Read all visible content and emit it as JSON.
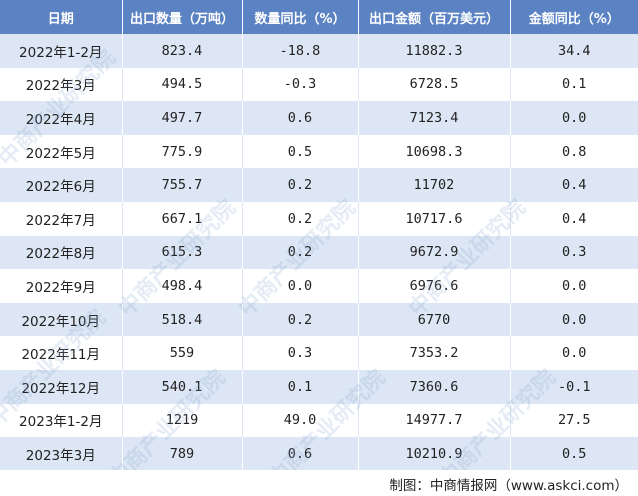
{
  "table": {
    "headers": [
      "日期",
      "出口数量（万吨）",
      "数量同比（%）",
      "出口金额（百万美元）",
      "金额同比（%）"
    ],
    "rows": [
      [
        "2022年1-2月",
        "823.4",
        "-18.8",
        "11882.3",
        "34.4"
      ],
      [
        "2022年3月",
        "494.5",
        "-0.3",
        "6728.5",
        "0.1"
      ],
      [
        "2022年4月",
        "497.7",
        "0.6",
        "7123.4",
        "0.0"
      ],
      [
        "2022年5月",
        "775.9",
        "0.5",
        "10698.3",
        "0.8"
      ],
      [
        "2022年6月",
        "755.7",
        "0.2",
        "11702",
        "0.4"
      ],
      [
        "2022年7月",
        "667.1",
        "0.2",
        "10717.6",
        "0.4"
      ],
      [
        "2022年8月",
        "615.3",
        "0.2",
        "9672.9",
        "0.3"
      ],
      [
        "2022年9月",
        "498.4",
        "0.0",
        "6976.6",
        "0.0"
      ],
      [
        "2022年10月",
        "518.4",
        "0.2",
        "6770",
        "0.0"
      ],
      [
        "2022年11月",
        "559",
        "0.3",
        "7353.2",
        "0.0"
      ],
      [
        "2022年12月",
        "540.1",
        "0.1",
        "7360.6",
        "-0.1"
      ],
      [
        "2023年1-2月",
        "1219",
        "49.0",
        "14977.7",
        "27.5"
      ],
      [
        "2023年3月",
        "789",
        "0.6",
        "10210.9",
        "0.5"
      ]
    ]
  },
  "source": "制图：中商情报网（www.askci.com）",
  "watermark": "中商产业研究院",
  "colors": {
    "header_bg": "#5b82c3",
    "row_alt_bg": "#dce6f4",
    "row_bg": "#ffffff"
  }
}
